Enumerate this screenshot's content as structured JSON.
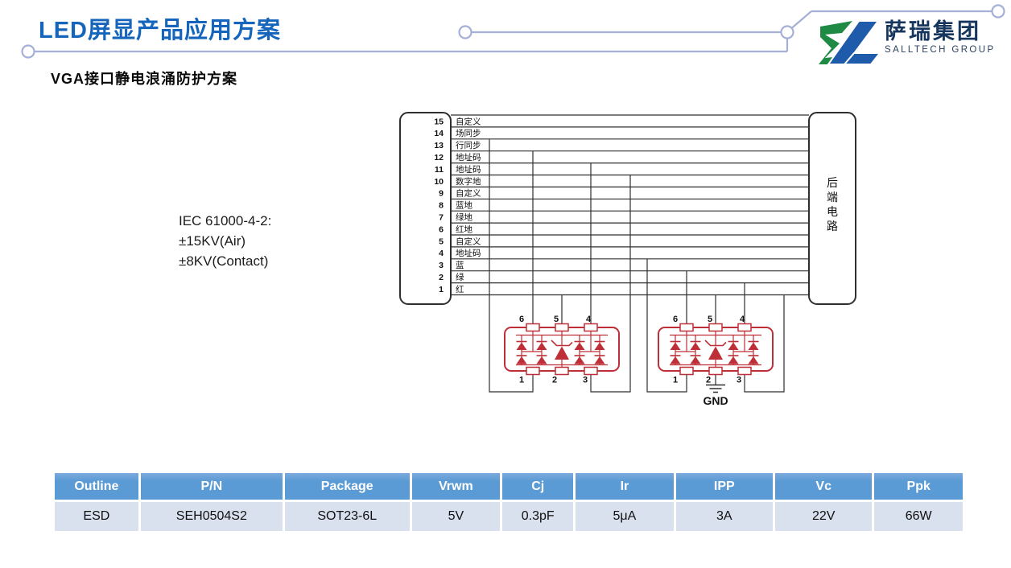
{
  "slide": {
    "title": "LED屏显产品应用方案",
    "subtitle": "VGA接口静电浪涌防护方案"
  },
  "logo": {
    "company_cn": "萨瑞集团",
    "company_en": "SALLTECH GROUP"
  },
  "standard_note": {
    "lines": [
      "IEC 61000-4-2:",
      "±15KV(Air)",
      "±8KV(Contact)"
    ]
  },
  "diagram": {
    "pins": [
      {
        "num": "15",
        "label": "自定义"
      },
      {
        "num": "14",
        "label": "场同步"
      },
      {
        "num": "13",
        "label": "行同步"
      },
      {
        "num": "12",
        "label": "地址码"
      },
      {
        "num": "11",
        "label": "地址码"
      },
      {
        "num": "10",
        "label": "数字地"
      },
      {
        "num": "9",
        "label": "自定义"
      },
      {
        "num": "8",
        "label": "蓝地"
      },
      {
        "num": "7",
        "label": "绿地"
      },
      {
        "num": "6",
        "label": "红地"
      },
      {
        "num": "5",
        "label": "自定义"
      },
      {
        "num": "4",
        "label": "地址码"
      },
      {
        "num": "3",
        "label": "蓝"
      },
      {
        "num": "2",
        "label": "绿"
      },
      {
        "num": "1",
        "label": "红"
      }
    ],
    "backend_label": "后端电路",
    "gnd_label": "GND",
    "chip_top_pins": [
      "6",
      "5",
      "4"
    ],
    "chip_bottom_pins": [
      "1",
      "2",
      "3"
    ]
  },
  "spec_table": {
    "headers": [
      "Outline",
      "P/N",
      "Package",
      "Vrwm",
      "Cj",
      "Ir",
      "IPP",
      "Vc",
      "Ppk"
    ],
    "rows": [
      [
        "ESD",
        "SEH0504S2",
        "SOT23-6L",
        "5V",
        "0.3pF",
        "5μA",
        "3A",
        "22V",
        "66W"
      ]
    ]
  },
  "colors": {
    "title_blue": "#1465BB",
    "table_header_blue": "#5B9BD5",
    "table_row_fill": "#D9E1EF",
    "chip_red": "#BE2F38",
    "wire_black": "#2F2F2F",
    "ornament_blue_gray": "#A6B0D6",
    "logo_green": "#1F8A44",
    "logo_blue": "#1F5BAB",
    "logo_navy": "#17365D"
  }
}
